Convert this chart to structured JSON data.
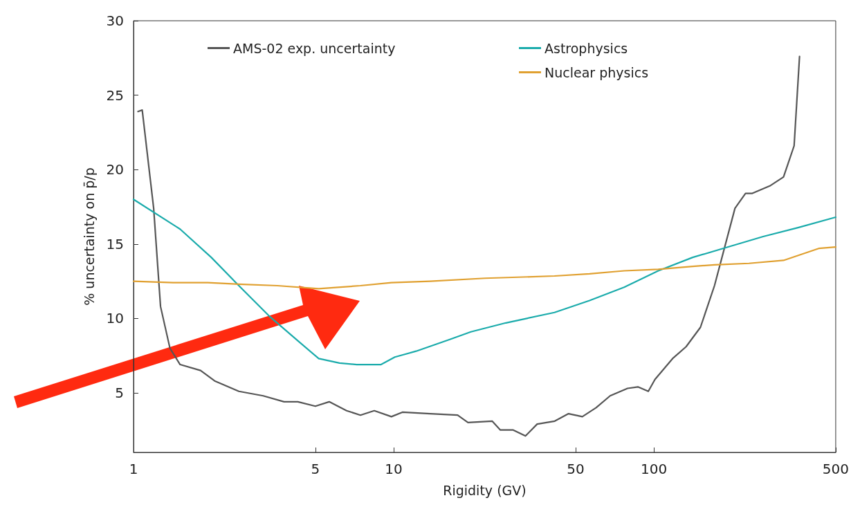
{
  "chart_data": {
    "type": "line",
    "xlabel": "Rigidity (GV)",
    "ylabel": "% uncertainty on p̄/p",
    "log": "x",
    "xlim": [
      1,
      500
    ],
    "xticks": [
      1,
      5,
      10,
      50,
      100,
      500
    ],
    "ylim": [
      1,
      30
    ],
    "yticks": [
      5,
      10,
      15,
      20,
      25,
      30
    ],
    "grid": false,
    "legend": "top",
    "marker": "none",
    "line_style": "solid",
    "series": [
      {
        "name": "AMS-02 exp. uncertainty",
        "color": "#555555",
        "x": [
          1.04,
          1.08,
          1.195,
          1.27,
          1.38,
          1.51,
          1.81,
          2.05,
          2.54,
          3.15,
          3.79,
          4.28,
          5.0,
          5.65,
          6.59,
          7.45,
          8.42,
          9.8,
          10.8,
          13.8,
          17.6,
          19.3,
          23.9,
          25.7,
          28.8,
          32.1,
          35.6,
          41.6,
          47,
          53.1,
          60,
          67.9,
          79.2,
          86.8,
          95.2,
          101,
          118,
          133,
          151,
          171,
          205,
          225,
          239,
          279,
          315,
          346,
          363
        ],
        "values": [
          23.9,
          24.0,
          17.4,
          10.8,
          8.0,
          6.9,
          6.5,
          5.8,
          5.1,
          4.8,
          4.4,
          4.4,
          4.1,
          4.4,
          3.8,
          3.5,
          3.8,
          3.4,
          3.7,
          3.6,
          3.5,
          3.0,
          3.1,
          2.5,
          2.5,
          2.1,
          2.9,
          3.1,
          3.6,
          3.4,
          4.0,
          4.8,
          5.3,
          5.4,
          5.1,
          5.9,
          7.3,
          8.1,
          9.4,
          12.2,
          17.4,
          18.4,
          18.4,
          18.9,
          19.5,
          21.6,
          27.6
        ]
      },
      {
        "name": "Astrophysics",
        "color": "#1aabab",
        "x": [
          1,
          1.51,
          1.99,
          2.54,
          3.35,
          4.28,
          5.15,
          6.19,
          7.21,
          8.94,
          10.1,
          12.2,
          16.5,
          19.8,
          27.0,
          32.5,
          41.5,
          56.6,
          76.9,
          104,
          141,
          193,
          263,
          358,
          500
        ],
        "values": [
          18.0,
          16.0,
          14.1,
          12.2,
          10.1,
          8.5,
          7.3,
          7.0,
          6.9,
          6.9,
          7.4,
          7.8,
          8.6,
          9.1,
          9.7,
          10.0,
          10.4,
          11.2,
          12.1,
          13.2,
          14.1,
          14.8,
          15.5,
          16.1,
          16.8
        ]
      },
      {
        "name": "Nuclear physics",
        "color": "#e0a030",
        "x": [
          1,
          1.42,
          1.93,
          2.54,
          3.57,
          5.15,
          7.45,
          9.8,
          13.8,
          22.5,
          41.5,
          56.6,
          76.9,
          104,
          141,
          171,
          232,
          315,
          430,
          500
        ],
        "values": [
          12.5,
          12.4,
          12.4,
          12.3,
          12.2,
          12.0,
          12.2,
          12.4,
          12.5,
          12.7,
          12.85,
          13.0,
          13.2,
          13.3,
          13.5,
          13.6,
          13.7,
          13.9,
          14.7,
          14.8
        ]
      }
    ]
  }
}
